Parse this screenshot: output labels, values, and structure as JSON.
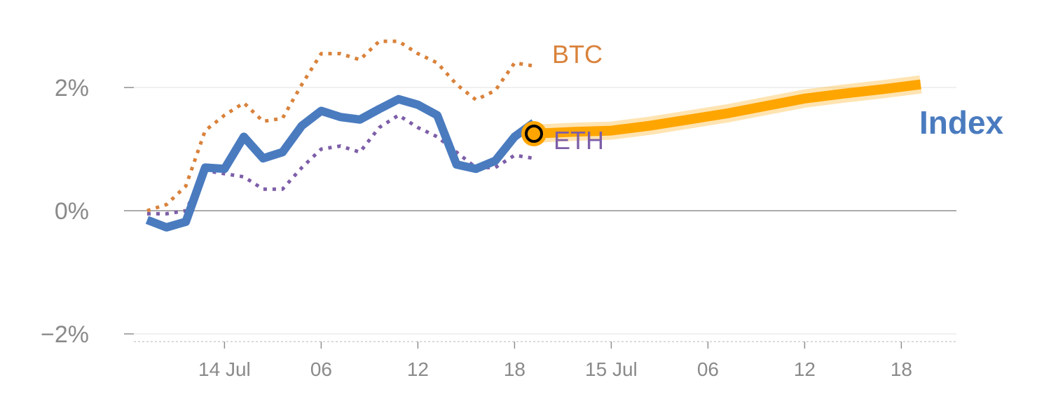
{
  "chart_data": {
    "type": "line",
    "xlim": [
      -4,
      80
    ],
    "ylim": [
      -2,
      3
    ],
    "grid": true,
    "x_ticks": [
      {
        "x": 8,
        "label": "14 Jul"
      },
      {
        "x": 18,
        "label": "06"
      },
      {
        "x": 28,
        "label": "12"
      },
      {
        "x": 38,
        "label": "18"
      },
      {
        "x": 48,
        "label": "15 Jul"
      },
      {
        "x": 58,
        "label": "06"
      },
      {
        "x": 68,
        "label": "12"
      },
      {
        "x": 78,
        "label": "18"
      }
    ],
    "y_ticks": [
      {
        "y": 2,
        "label": "2%"
      },
      {
        "y": 0,
        "label": "0%"
      },
      {
        "y": -2,
        "label": "−2%"
      }
    ],
    "series": [
      {
        "name": "BTC",
        "style": "dotted",
        "color": "#d9823b",
        "x": [
          0,
          2,
          4,
          6,
          8,
          10,
          12,
          14,
          16,
          18,
          20,
          22,
          24,
          26,
          28,
          30,
          32,
          34,
          36,
          38,
          40
        ],
        "y": [
          0.0,
          0.1,
          0.4,
          1.3,
          1.55,
          1.75,
          1.45,
          1.5,
          2.05,
          2.55,
          2.55,
          2.45,
          2.75,
          2.75,
          2.55,
          2.4,
          2.05,
          1.8,
          1.95,
          2.4,
          2.35
        ]
      },
      {
        "name": "ETH",
        "style": "dotted",
        "color": "#7d5ea8",
        "x": [
          0,
          2,
          4,
          6,
          8,
          10,
          12,
          14,
          16,
          18,
          20,
          22,
          24,
          26,
          28,
          30,
          32,
          34,
          36,
          38,
          40
        ],
        "y": [
          -0.05,
          -0.05,
          0.0,
          0.65,
          0.6,
          0.55,
          0.35,
          0.35,
          0.7,
          1.0,
          1.05,
          0.95,
          1.35,
          1.55,
          1.35,
          1.2,
          0.95,
          0.7,
          0.7,
          0.9,
          0.85
        ]
      },
      {
        "name": "Index",
        "style": "solid",
        "color": "#4a7bbf",
        "x": [
          0,
          2,
          4,
          6,
          8,
          10,
          12,
          14,
          16,
          18,
          20,
          22,
          24,
          26,
          28,
          30,
          32,
          34,
          36,
          38,
          40
        ],
        "y": [
          -0.15,
          -0.27,
          -0.18,
          0.7,
          0.68,
          1.2,
          0.85,
          0.95,
          1.38,
          1.62,
          1.52,
          1.48,
          1.65,
          1.81,
          1.72,
          1.55,
          0.75,
          0.68,
          0.81,
          1.2,
          1.43
        ]
      },
      {
        "name": "Index",
        "style": "forecast",
        "color": "#ffa500",
        "x": [
          40,
          44,
          48,
          52,
          56,
          60,
          64,
          68,
          72,
          76,
          80
        ],
        "y": [
          1.25,
          1.28,
          1.3,
          1.38,
          1.48,
          1.58,
          1.7,
          1.82,
          1.9,
          1.97,
          2.05
        ]
      }
    ],
    "labels": [
      {
        "text": "BTC",
        "color": "#d9823b"
      },
      {
        "text": "ETH",
        "color": "#7d5ea8"
      },
      {
        "text": "Index",
        "color": "#4a7bbf"
      }
    ],
    "marker": {
      "x": 40,
      "y": 1.25,
      "fill": "#ffa500",
      "stroke": "#000000"
    }
  }
}
